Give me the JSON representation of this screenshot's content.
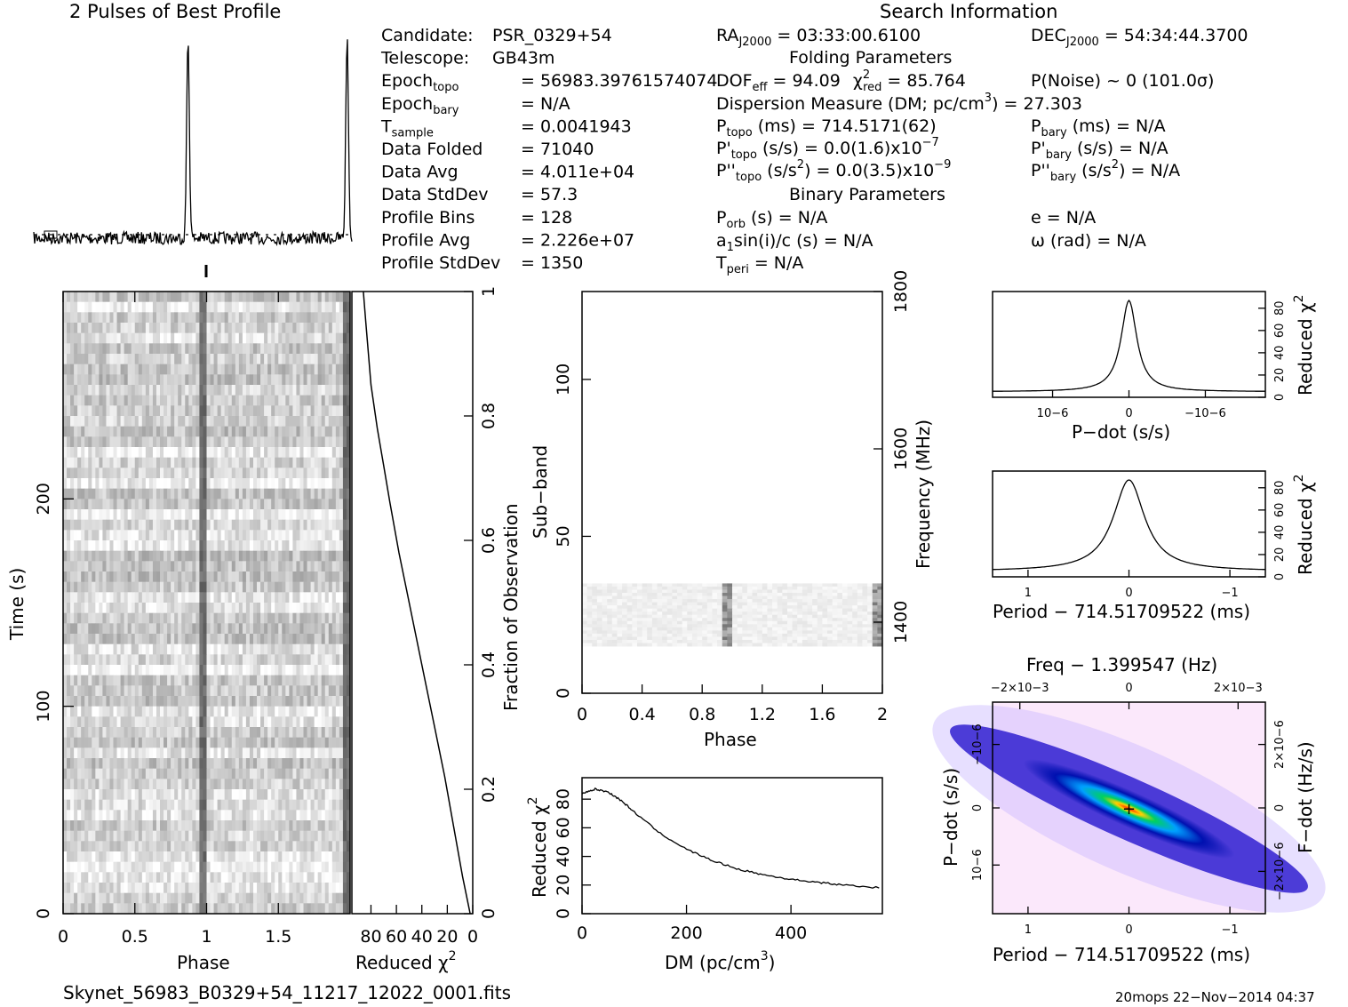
{
  "profile_title": "2 Pulses of Best Profile",
  "search_title": "Search Information",
  "folding_title": "Folding Parameters",
  "binary_title": "Binary Parameters",
  "info_left": [
    {
      "k": "Candidate:",
      "v": "PSR_0329+54"
    },
    {
      "k": "Telescope:",
      "v": "GB43m"
    },
    {
      "k": "Epoch",
      "sub": "topo",
      "v": "= 56983.39761574074"
    },
    {
      "k": "Epoch",
      "sub": "bary",
      "v": "= N/A"
    },
    {
      "k": "T",
      "sub": "sample",
      "v": "=   0.0041943"
    },
    {
      "k": "Data Folded",
      "v": "=   71040"
    },
    {
      "k": "Data Avg",
      "v": "=   4.011e+04"
    },
    {
      "k": "Data StdDev",
      "v": "=   57.3"
    },
    {
      "k": "Profile Bins",
      "v": "=   128"
    },
    {
      "k": "Profile Avg",
      "v": "=   2.226e+07"
    },
    {
      "k": "Profile StdDev",
      "v": "=   1350"
    }
  ],
  "info_mid": {
    "ra": "RA",
    "ra_sub": "J2000",
    "ra_val": "= 03:33:00.6100",
    "dec": "DEC",
    "dec_sub": "J2000",
    "dec_val": "= 54:34:44.3700",
    "dof": "DOF",
    "dof_sub": "eff",
    "dof_val": "= 94.09",
    "chi": "χ",
    "chi_sup": "2",
    "chi_sub": "red",
    "chi_val": "= 85.764",
    "pnoise": "P(Noise) ~ 0    (101.0σ)",
    "dm_line": "Dispersion Measure (DM; pc/cm",
    "dm_sup": "3",
    "dm_val": ") = 27.303",
    "ptopo": "P",
    "ptopo_sub": "topo",
    "ptopo_val": "(ms) =  714.5171(62)",
    "pdtopo": "P'",
    "pdtopo_sub": "topo",
    "pdtopo_val": "(s/s) = 0.0(1.6)x10",
    "pdtopo_exp": "−7",
    "pddtopo": "P''",
    "pddtopo_sub": "topo",
    "pddtopo_val": "(s/s",
    "pddtopo_sup": "2",
    "pddtopo_val2": ") = 0.0(3.5)x10",
    "pddtopo_exp": "−9",
    "pbary": "P",
    "pbary_sub": "bary",
    "pbary_val": "(ms) = N/A",
    "pdbary": "P'",
    "pdbary_sub": "bary",
    "pdbary_val": "(s/s) = N/A",
    "pddbary": "P''",
    "pddbary_sub": "bary",
    "pddbary_val": "(s/s",
    "pddbary_sup": "2",
    "pddbary_val2": ") = N/A",
    "porb": "P",
    "porb_sub": "orb",
    "porb_val": "(s) = N/A",
    "asini": "a",
    "asini_sub": "1",
    "asini_val": "sin(i)/c (s) = N/A",
    "tperi": "T",
    "tperi_sub": "peri",
    "tperi_val": "= N/A",
    "ecc": "e = N/A",
    "omega": "ω (rad) = N/A"
  },
  "footer_file": "Skynet_56983_B0329+54_11217_12022_0001.fits",
  "footer_stamp": "20mops 22−Nov−2014 04:37",
  "axis_labels": {
    "time": "Time (s)",
    "phase": "Phase",
    "reduced_chi2": "Reduced χ",
    "chi_sup": "2",
    "fraction": "Fraction of Observation",
    "subband": "Sub−band",
    "frequency": "Frequency (MHz)",
    "dm": "DM (pc/cm",
    "dm_sup": "3",
    "dm_close": ")",
    "pdot": "P−dot (s/s)",
    "period": "Period − 714.51709522 (ms)",
    "freq_top": "Freq − 1.399547 (Hz)",
    "fdot": "F−dot (Hz/s)"
  },
  "chart_data": [
    {
      "type": "line",
      "name": "profile",
      "x_range": [
        0,
        2
      ],
      "peaks_at_phase": [
        0.97,
        1.97
      ]
    },
    {
      "type": "heatmap",
      "name": "time-phase",
      "xlabel": "Phase",
      "ylabel": "Time (s)",
      "xlim": [
        0,
        2
      ],
      "ylim": [
        0,
        300
      ],
      "x_ticks": [
        "0",
        "0.5",
        "1",
        "1.5"
      ],
      "y_ticks": [
        "0",
        "100",
        "200"
      ]
    },
    {
      "type": "line",
      "name": "reduced-chi2-vs-fraction",
      "xlabel": "Reduced χ2",
      "ylabel": "Fraction of Observation",
      "x_ticks": [
        "80",
        "60",
        "40",
        "20",
        "0"
      ],
      "y_ticks": [
        "0",
        "0.2",
        "0.4",
        "0.6",
        "0.8",
        "1"
      ],
      "x": [
        86,
        84,
        82,
        80,
        75,
        70,
        65,
        58,
        52,
        45,
        38,
        30,
        22,
        15,
        8,
        2
      ],
      "y": [
        1.0,
        0.95,
        0.9,
        0.85,
        0.78,
        0.72,
        0.66,
        0.58,
        0.52,
        0.45,
        0.38,
        0.3,
        0.22,
        0.14,
        0.06,
        0.0
      ]
    },
    {
      "type": "heatmap",
      "name": "subband-phase",
      "xlabel": "Phase",
      "ylabel": "Sub−band",
      "y2label": "Frequency (MHz)",
      "xlim": [
        0,
        2
      ],
      "ylim": [
        0,
        128
      ],
      "x_ticks": [
        "0",
        "0.4",
        "0.8",
        "1.2",
        "1.6",
        "2"
      ],
      "y_ticks": [
        "0",
        "50",
        "100"
      ],
      "y2_ticks": [
        "1400",
        "1600",
        "1800"
      ],
      "active_subbands": [
        15,
        35
      ]
    },
    {
      "type": "line",
      "name": "dm-curve",
      "xlabel": "DM (pc/cm3)",
      "ylabel": "Reduced χ2",
      "xlim": [
        0,
        575
      ],
      "ylim": [
        0,
        95
      ],
      "x_ticks": [
        "0",
        "200",
        "400"
      ],
      "y_ticks": [
        "0",
        "20",
        "40",
        "60",
        "80"
      ],
      "x": [
        0,
        25,
        50,
        75,
        100,
        150,
        200,
        250,
        300,
        350,
        400,
        450,
        500,
        575
      ],
      "y": [
        84,
        87,
        85,
        79,
        71,
        56,
        45,
        37,
        31,
        27,
        24,
        22,
        20,
        18
      ]
    },
    {
      "type": "line",
      "name": "pdot-curve",
      "xlabel": "P−dot (s/s)",
      "ylabel": "Reduced χ2",
      "x_ticks": [
        "10−6",
        "0",
        "−10−6"
      ],
      "y_ticks": [
        "0",
        "20",
        "40",
        "60",
        "80"
      ],
      "ylim": [
        0,
        95
      ]
    },
    {
      "type": "line",
      "name": "period-curve",
      "xlabel": "Period − 714.51709522 (ms)",
      "ylabel": "Reduced χ2",
      "x_ticks": [
        "1",
        "0",
        "−1"
      ],
      "y_ticks": [
        "0",
        "20",
        "40",
        "60",
        "80"
      ],
      "ylim": [
        0,
        95
      ]
    },
    {
      "type": "heatmap",
      "name": "period-pdot",
      "xlabel": "Period − 714.51709522 (ms)",
      "ylabel": "P−dot (s/s)",
      "x2label": "Freq − 1.399547 (Hz)",
      "y2label": "F−dot (Hz/s)",
      "x_ticks": [
        "1",
        "0",
        "−1"
      ],
      "x2_ticks": [
        "−2×10−3",
        "0",
        "2×10−3"
      ],
      "y_ticks": [
        "10−6",
        "0",
        "−10−6"
      ],
      "y2_ticks": [
        "−2×10−6",
        "0",
        "2×10−6"
      ]
    }
  ]
}
